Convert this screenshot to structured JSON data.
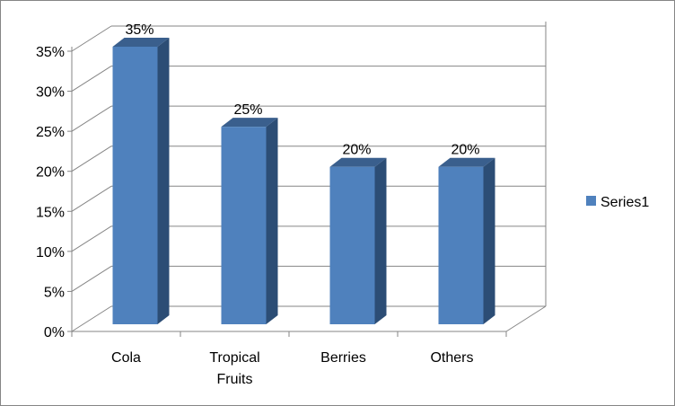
{
  "chart_data": {
    "type": "bar",
    "categories": [
      "Cola",
      "Tropical Fruits",
      "Berries",
      "Others"
    ],
    "category_lines": [
      [
        "Cola"
      ],
      [
        "Tropical",
        "Fruits"
      ],
      [
        "Berries"
      ],
      [
        "Others"
      ]
    ],
    "series": [
      {
        "name": "Series1",
        "values": [
          0.35,
          0.25,
          0.2,
          0.2
        ],
        "color": "#4f81bd"
      }
    ],
    "data_labels": [
      "35%",
      "25%",
      "20%",
      "20%"
    ],
    "y_ticks": [
      "0%",
      "5%",
      "10%",
      "15%",
      "20%",
      "25%",
      "30%",
      "35%"
    ],
    "ylim": [
      0,
      0.35
    ],
    "grid": true,
    "style": "3d-column",
    "legend": "right",
    "colors": {
      "bar_front": "#4f81bd",
      "bar_side": "#2c4d75",
      "bar_top": "#3a5f8d",
      "grid": "#868686",
      "border": "#868686"
    }
  }
}
